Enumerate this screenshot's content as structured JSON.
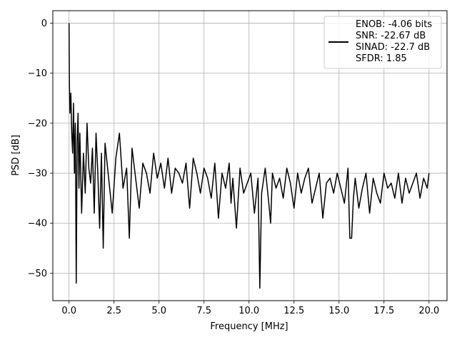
{
  "chart_data": {
    "type": "line",
    "xlabel": "Frequency [MHz]",
    "ylabel": "PSD [dB]",
    "xlim": [
      -0.9,
      21.0
    ],
    "ylim": [
      -55.5,
      2.5
    ],
    "xticks": [
      0.0,
      2.5,
      5.0,
      7.5,
      10.0,
      12.5,
      15.0,
      17.5,
      20.0
    ],
    "xtick_labels": [
      "0.0",
      "2.5",
      "5.0",
      "7.5",
      "10.0",
      "12.5",
      "15.0",
      "17.5",
      "20.0"
    ],
    "yticks": [
      0,
      -10,
      -20,
      -30,
      -40,
      -50
    ],
    "ytick_labels": [
      "0",
      "−10",
      "−20",
      "−30",
      "−40",
      "−50"
    ],
    "grid": true,
    "legend_position": "top-right",
    "legend_lines": [
      "ENOB: -4.06 bits",
      "SNR: -22.67 dB",
      "SINAD: -22.7 dB",
      "SFDR: 1.85"
    ],
    "line_color": "#000000",
    "series": [
      {
        "x": [
          0.0,
          0.02,
          0.05,
          0.1,
          0.15,
          0.2,
          0.25,
          0.3,
          0.35,
          0.4,
          0.45,
          0.5,
          0.55,
          0.6,
          0.7,
          0.8,
          0.9,
          1.0,
          1.1,
          1.2,
          1.3,
          1.4,
          1.5,
          1.6,
          1.7,
          1.8,
          1.9,
          2.0,
          2.2,
          2.4,
          2.6,
          2.8,
          3.0,
          3.2,
          3.35,
          3.5,
          3.7,
          3.9,
          4.1,
          4.3,
          4.5,
          4.7,
          4.9,
          5.1,
          5.3,
          5.5,
          5.7,
          5.9,
          6.1,
          6.3,
          6.5,
          6.7,
          6.9,
          7.1,
          7.3,
          7.5,
          7.7,
          7.9,
          8.1,
          8.3,
          8.5,
          8.7,
          8.9,
          9.0,
          9.1,
          9.3,
          9.5,
          9.7,
          9.9,
          10.1,
          10.3,
          10.5,
          10.6,
          10.7,
          10.9,
          11.1,
          11.2,
          11.3,
          11.5,
          11.7,
          11.9,
          12.1,
          12.3,
          12.5,
          12.7,
          12.9,
          13.1,
          13.3,
          13.5,
          13.7,
          13.9,
          14.1,
          14.3,
          14.5,
          14.7,
          14.9,
          15.1,
          15.3,
          15.5,
          15.6,
          15.7,
          15.8,
          15.9,
          16.1,
          16.3,
          16.5,
          16.7,
          16.9,
          17.1,
          17.3,
          17.5,
          17.7,
          17.9,
          18.1,
          18.3,
          18.5,
          18.7,
          18.9,
          19.1,
          19.3,
          19.5,
          19.7,
          19.9,
          20.0
        ],
        "y": [
          0.0,
          -12,
          -18,
          -14,
          -22,
          -26,
          -16,
          -30,
          -20,
          -52,
          -24,
          -18,
          -33,
          -22,
          -38,
          -26,
          -34,
          -20,
          -29,
          -32,
          -25,
          -38,
          -22,
          -30,
          -41,
          -26,
          -45,
          -24,
          -31,
          -38,
          -27,
          -22,
          -33,
          -29,
          -43,
          -25,
          -31,
          -37,
          -28,
          -30,
          -34,
          -26,
          -31,
          -28,
          -33,
          -27,
          -34,
          -29,
          -30,
          -32,
          -28,
          -37,
          -27,
          -30,
          -34,
          -29,
          -31,
          -35,
          -28,
          -39,
          -30,
          -33,
          -28,
          -36,
          -31,
          -41,
          -29,
          -34,
          -32,
          -30,
          -38,
          -31,
          -53,
          -34,
          -29,
          -36,
          -40,
          -30,
          -33,
          -31,
          -35,
          -29,
          -32,
          -37,
          -30,
          -34,
          -31,
          -29,
          -36,
          -33,
          -30,
          -39,
          -32,
          -31,
          -34,
          -30,
          -33,
          -36,
          -29,
          -43,
          -43,
          -35,
          -31,
          -37,
          -33,
          -30,
          -38,
          -31,
          -34,
          -36,
          -30,
          -33,
          -32,
          -35,
          -30,
          -36,
          -31,
          -34,
          -32,
          -30,
          -35,
          -31,
          -33,
          -30
        ]
      }
    ]
  }
}
